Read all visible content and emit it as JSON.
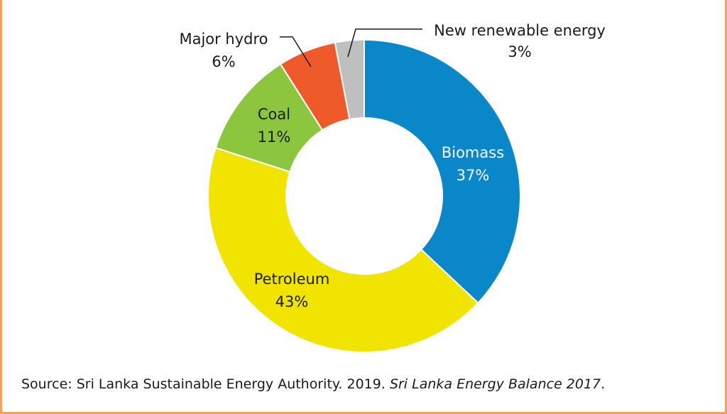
{
  "chart_data": {
    "type": "pie",
    "donut": true,
    "start": "12 o'clock",
    "direction": "clockwise",
    "slices": [
      {
        "name": "Biomass",
        "value": 37,
        "value_label": "37%",
        "color": "#0a87c9",
        "label_color": "#ffffff"
      },
      {
        "name": "Petroleum",
        "value": 43,
        "value_label": "43%",
        "color": "#f0e400",
        "label_color": "#1a1a1a"
      },
      {
        "name": "Coal",
        "value": 11,
        "value_label": "11%",
        "color": "#8cc63f",
        "label_color": "#1a1a1a"
      },
      {
        "name": "Major hydro",
        "value": 6,
        "value_label": "6%",
        "color": "#ee5a2a",
        "label_color": "#1a1a1a"
      },
      {
        "name": "New renewable energy",
        "value": 3,
        "value_label": "3%",
        "color": "#bfbfbf",
        "label_color": "#1a1a1a"
      }
    ]
  },
  "source": {
    "prefix": "Source: Sri Lanka Sustainable Energy Authority. 2019. ",
    "title": "Sri Lanka Energy Balance 2017",
    "suffix": "."
  },
  "colors": {
    "frame_border": "#f4a259",
    "text": "#1a1a1a",
    "slice_outline": "#ffffff"
  }
}
